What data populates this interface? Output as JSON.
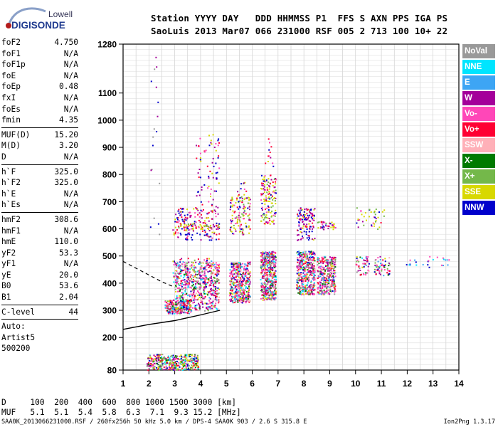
{
  "logo": {
    "line1": "Lowell",
    "line2": "DIGISONDE"
  },
  "header": {
    "labels": "Station YYYY DAY   DDD HHMMSS P1  FFS S AXN PPS IGA PS",
    "values": "SaoLuis 2013 Mar07 066 231000 RSF 005 2 713 100 10+ 22"
  },
  "params_top": [
    {
      "label": "foF2",
      "value": "4.750"
    },
    {
      "label": "foF1",
      "value": "N/A"
    },
    {
      "label": "foF1p",
      "value": "N/A"
    },
    {
      "label": "foE",
      "value": "N/A"
    },
    {
      "label": "foEp",
      "value": "0.48"
    },
    {
      "label": "fxI",
      "value": "N/A"
    },
    {
      "label": "foEs",
      "value": "N/A"
    },
    {
      "label": "fmin",
      "value": "4.35"
    }
  ],
  "params_muf": [
    {
      "label": "MUF(D)",
      "value": "15.20"
    },
    {
      "label": "M(D)",
      "value": "3.20"
    },
    {
      "label": "D",
      "value": "N/A"
    }
  ],
  "params_h": [
    {
      "label": "h`F",
      "value": "325.0"
    },
    {
      "label": "h`F2",
      "value": "325.0"
    },
    {
      "label": "h`E",
      "value": "N/A"
    },
    {
      "label": "h`Es",
      "value": "N/A"
    }
  ],
  "params_hm": [
    {
      "label": "hmF2",
      "value": "308.6"
    },
    {
      "label": "hmF1",
      "value": "N/A"
    },
    {
      "label": "hmE",
      "value": "110.0"
    },
    {
      "label": "yF2",
      "value": "53.3"
    },
    {
      "label": "yF1",
      "value": "N/A"
    },
    {
      "label": "yE",
      "value": "20.0"
    },
    {
      "label": "B0",
      "value": "53.6"
    },
    {
      "label": "B1",
      "value": "2.04"
    }
  ],
  "params_c": [
    {
      "label": "C-level",
      "value": "44"
    }
  ],
  "auto": {
    "line1": "Auto:",
    "line2": "Artist5",
    "line3": "500200"
  },
  "legend": [
    {
      "label": "NoVal",
      "bg": "#999999",
      "fg": "#ffffff"
    },
    {
      "label": "NNE",
      "bg": "#00e5ff",
      "fg": "#ffffff"
    },
    {
      "label": "E",
      "bg": "#3da5f4",
      "fg": "#ffffff"
    },
    {
      "label": "W",
      "bg": "#a4009a",
      "fg": "#ffffff"
    },
    {
      "label": "Vo-",
      "bg": "#ff47b8",
      "fg": "#ffffff"
    },
    {
      "label": "Vo+",
      "bg": "#ff0033",
      "fg": "#ffffff"
    },
    {
      "label": "SSW",
      "bg": "#ffb0b8",
      "fg": "#ffffff"
    },
    {
      "label": "X-",
      "bg": "#007a00",
      "fg": "#ffffff"
    },
    {
      "label": "X+",
      "bg": "#74b84a",
      "fg": "#ffffff"
    },
    {
      "label": "SSE",
      "bg": "#d8d800",
      "fg": "#ffffff"
    },
    {
      "label": "NNW",
      "bg": "#0000cc",
      "fg": "#ffffff"
    }
  ],
  "dmuf": {
    "d_line": "D     100  200  400  600  800 1000 1500 3000 [km]",
    "muf_line": "MUF   5.1  5.1  5.4  5.8  6.3  7.1  9.3 15.2 [MHz]"
  },
  "footer": {
    "left": "SAA0K_2013066231000.RSF / 260fx256h 50 kHz 5.0 km / DPS-4 SAA0K 903 / 2.6 S 315.8 E",
    "right": "Ion2Png 1.3.17"
  },
  "chart_data": {
    "type": "scatter",
    "x_axis": {
      "ticks": [
        "1",
        "2",
        "3",
        "4",
        "5",
        "6",
        "7",
        "8",
        "9",
        "10",
        "11",
        "12",
        "13",
        "14"
      ],
      "range": [
        1,
        14
      ]
    },
    "y_axis": {
      "ticks": [
        "80",
        "200",
        "300",
        "400",
        "500",
        "600",
        "700",
        "800",
        "900",
        "1000",
        "1100",
        "1280"
      ],
      "range": [
        80,
        1280
      ]
    },
    "grid": true,
    "legend_placement": "right",
    "trace_clusters": [
      {
        "f": [
          2.6,
          4.7
        ],
        "h": [
          290,
          480
        ],
        "note_color": "mixed"
      },
      {
        "f": [
          4.3,
          4.7
        ],
        "h": [
          580,
          950
        ],
        "note_color": "mixed"
      },
      {
        "f": [
          5.1,
          5.9
        ],
        "h": [
          330,
          480
        ],
        "note_color": "mixed"
      },
      {
        "f": [
          5.1,
          5.9
        ],
        "h": [
          580,
          720
        ],
        "note_color": "mixed"
      },
      {
        "f": [
          6.3,
          6.9
        ],
        "h": [
          340,
          520
        ],
        "note_color": "mixed"
      },
      {
        "f": [
          6.3,
          6.9
        ],
        "h": [
          620,
          800
        ],
        "note_color": "mixed"
      },
      {
        "f": [
          7.7,
          8.4
        ],
        "h": [
          360,
          520
        ],
        "note_color": "mixed"
      },
      {
        "f": [
          7.7,
          8.4
        ],
        "h": [
          580,
          680
        ],
        "note_color": "mixed"
      },
      {
        "f": [
          8.5,
          9.2
        ],
        "h": [
          360,
          500
        ],
        "note_color": "mixed"
      },
      {
        "f": [
          10.0,
          10.5
        ],
        "h": [
          430,
          500
        ],
        "note_color": "mixed"
      },
      {
        "f": [
          10.7,
          11.3
        ],
        "h": [
          430,
          500
        ],
        "note_color": "mixed"
      },
      {
        "f": [
          1.9,
          3.9
        ],
        "h": [
          80,
          140
        ],
        "note_color": "mixed"
      }
    ],
    "profile_curve": [
      [
        1,
        230
      ],
      [
        2,
        248
      ],
      [
        3,
        262
      ],
      [
        4,
        283
      ],
      [
        4.75,
        300
      ]
    ],
    "dashed_curve": [
      [
        1,
        480
      ],
      [
        2,
        430
      ],
      [
        2.5,
        405
      ],
      [
        3,
        385
      ]
    ]
  }
}
